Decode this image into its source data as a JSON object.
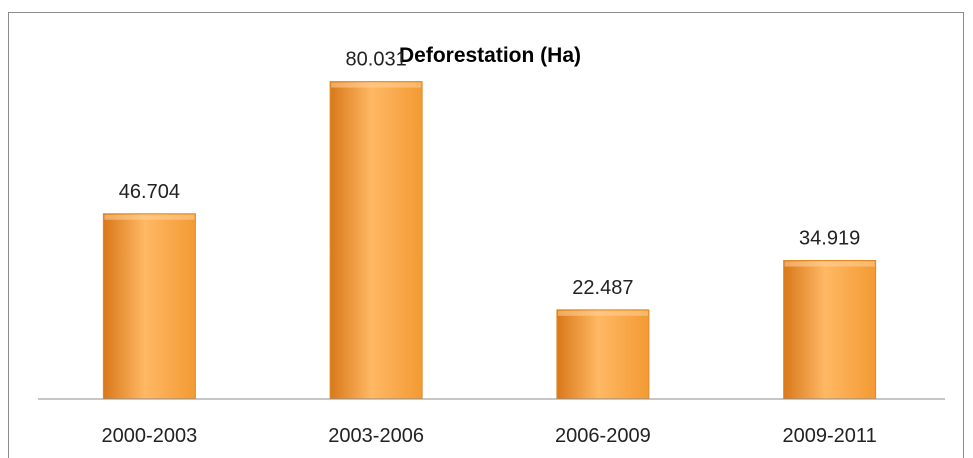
{
  "chart_data": {
    "type": "bar",
    "title": "Deforestation (Ha)",
    "xlabel": "",
    "ylabel": "",
    "categories": [
      "2000-2003",
      "2003-2006",
      "2006-2009",
      "2009-2011"
    ],
    "values": [
      46.704,
      80.031,
      22.487,
      34.919
    ],
    "data_labels": [
      "46.704",
      "80.031",
      "22.487",
      "34.919"
    ],
    "ylim": [
      0,
      100
    ],
    "grid": false,
    "legend": "none",
    "bar_color": "#f39a33",
    "bar_color_light": "#ffb864",
    "bar_color_dark": "#d9781a"
  }
}
